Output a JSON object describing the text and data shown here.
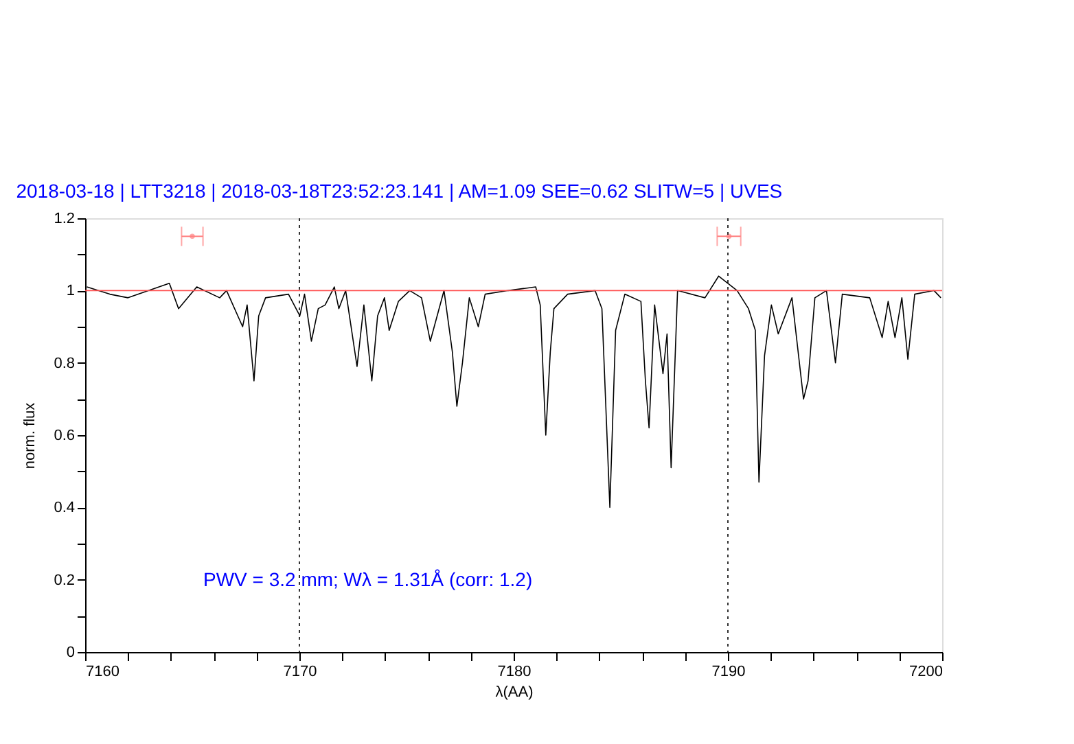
{
  "chart_data": {
    "type": "line",
    "title": "2018-03-18 | LTT3218 | 2018-03-18T23:52:23.141 | AM=1.09  SEE=0.62  SLITW=5 | UVES",
    "xlabel": "λ(AA)",
    "ylabel": "norm. flux",
    "xlim": [
      7160,
      7200
    ],
    "ylim": [
      0,
      1.2
    ],
    "xticks": [
      7160,
      {
        "value": 7162,
        "label": null
      },
      {
        "value": 7164,
        "label": null
      },
      {
        "value": 7166,
        "label": null
      },
      {
        "value": 7168,
        "label": null
      },
      7170,
      {
        "value": 7172,
        "label": null
      },
      {
        "value": 7174,
        "label": null
      },
      {
        "value": 7176,
        "label": null
      },
      {
        "value": 7178,
        "label": null
      },
      7180,
      {
        "value": 7182,
        "label": null
      },
      {
        "value": 7184,
        "label": null
      },
      {
        "value": 7186,
        "label": null
      },
      {
        "value": 7188,
        "label": null
      },
      7190,
      {
        "value": 7192,
        "label": null
      },
      {
        "value": 7194,
        "label": null
      },
      {
        "value": 7196,
        "label": null
      },
      {
        "value": 7198,
        "label": null
      },
      7200
    ],
    "yticks": [
      0,
      {
        "value": 0.1,
        "label": null
      },
      0.2,
      {
        "value": 0.3,
        "label": null
      },
      0.4,
      {
        "value": 0.5,
        "label": null
      },
      0.6,
      {
        "value": 0.7,
        "label": null
      },
      0.8,
      {
        "value": 0.9,
        "label": null
      },
      1,
      {
        "value": 1.1,
        "label": null
      },
      1.2
    ],
    "grid": false,
    "legend": false,
    "marker": "none",
    "line_style": "solid",
    "series": [
      {
        "color": "#000000",
        "x": [
          7160.08,
          7161.15,
          7162.0,
          7163.93,
          7164.36,
          7165.21,
          7166.28,
          7166.6,
          7167.35,
          7167.56,
          7167.88,
          7168.1,
          7168.42,
          7169.49,
          7170.02,
          7170.24,
          7170.56,
          7170.88,
          7171.2,
          7171.63,
          7171.84,
          7172.16,
          7172.69,
          7173.01,
          7173.38,
          7173.65,
          7173.97,
          7174.19,
          7174.62,
          7175.15,
          7175.7,
          7176.11,
          7176.75,
          7177.14,
          7177.35,
          7177.61,
          7177.93,
          7178.35,
          7178.67,
          7179.74,
          7181.03,
          7181.24,
          7181.5,
          7181.71,
          7181.88,
          7182.52,
          7183.8,
          7184.12,
          7184.49,
          7184.76,
          7185.19,
          7185.94,
          7186.15,
          7186.32,
          7186.58,
          7186.97,
          7187.16,
          7187.35,
          7187.65,
          7188.93,
          7189.57,
          7190.43,
          7190.96,
          7191.28,
          7191.45,
          7191.71,
          7192.03,
          7192.35,
          7192.99,
          7193.53,
          7193.74,
          7194.06,
          7194.6,
          7195.02,
          7195.34,
          7196.62,
          7197.2,
          7197.48,
          7197.8,
          7198.12,
          7198.4,
          7198.72,
          7199.62,
          7199.94
        ],
        "values": [
          1.01,
          0.99,
          0.98,
          1.02,
          0.95,
          1.01,
          0.98,
          1.0,
          0.9,
          0.96,
          0.75,
          0.93,
          0.98,
          0.99,
          0.93,
          0.99,
          0.86,
          0.95,
          0.96,
          1.01,
          0.95,
          1.0,
          0.79,
          0.96,
          0.75,
          0.93,
          0.98,
          0.89,
          0.97,
          1.0,
          0.98,
          0.86,
          1.0,
          0.83,
          0.68,
          0.8,
          0.98,
          0.9,
          0.99,
          1.0,
          1.01,
          0.96,
          0.6,
          0.83,
          0.95,
          0.99,
          1.0,
          0.95,
          0.4,
          0.89,
          0.99,
          0.97,
          0.75,
          0.62,
          0.96,
          0.77,
          0.88,
          0.51,
          1.0,
          0.98,
          1.04,
          1.0,
          0.95,
          0.89,
          0.47,
          0.82,
          0.96,
          0.88,
          0.98,
          0.7,
          0.75,
          0.98,
          1.0,
          0.8,
          0.99,
          0.98,
          0.87,
          0.97,
          0.87,
          0.98,
          0.81,
          0.99,
          1.0,
          0.98
        ]
      },
      {
        "type": "scatter",
        "marker": "circle",
        "color": "#ff8080",
        "x": [
          7165.0,
          7190.05
        ],
        "values": [
          1.15,
          1.15
        ],
        "xerrors": [
          0.5,
          0.55
        ]
      }
    ],
    "ref_lines": [
      {
        "axis": "y",
        "value": 1,
        "color": "#ff5050",
        "line_style": "solid"
      },
      {
        "axis": "x",
        "value": 7170,
        "color": "#000000",
        "line_style": "dotted"
      },
      {
        "axis": "x",
        "value": 7190,
        "color": "#000000",
        "line_style": "dotted"
      }
    ],
    "annotations": [
      "PWV = 3.2 mm; Wλ = 1.31Å (corr: 1.2)"
    ]
  }
}
